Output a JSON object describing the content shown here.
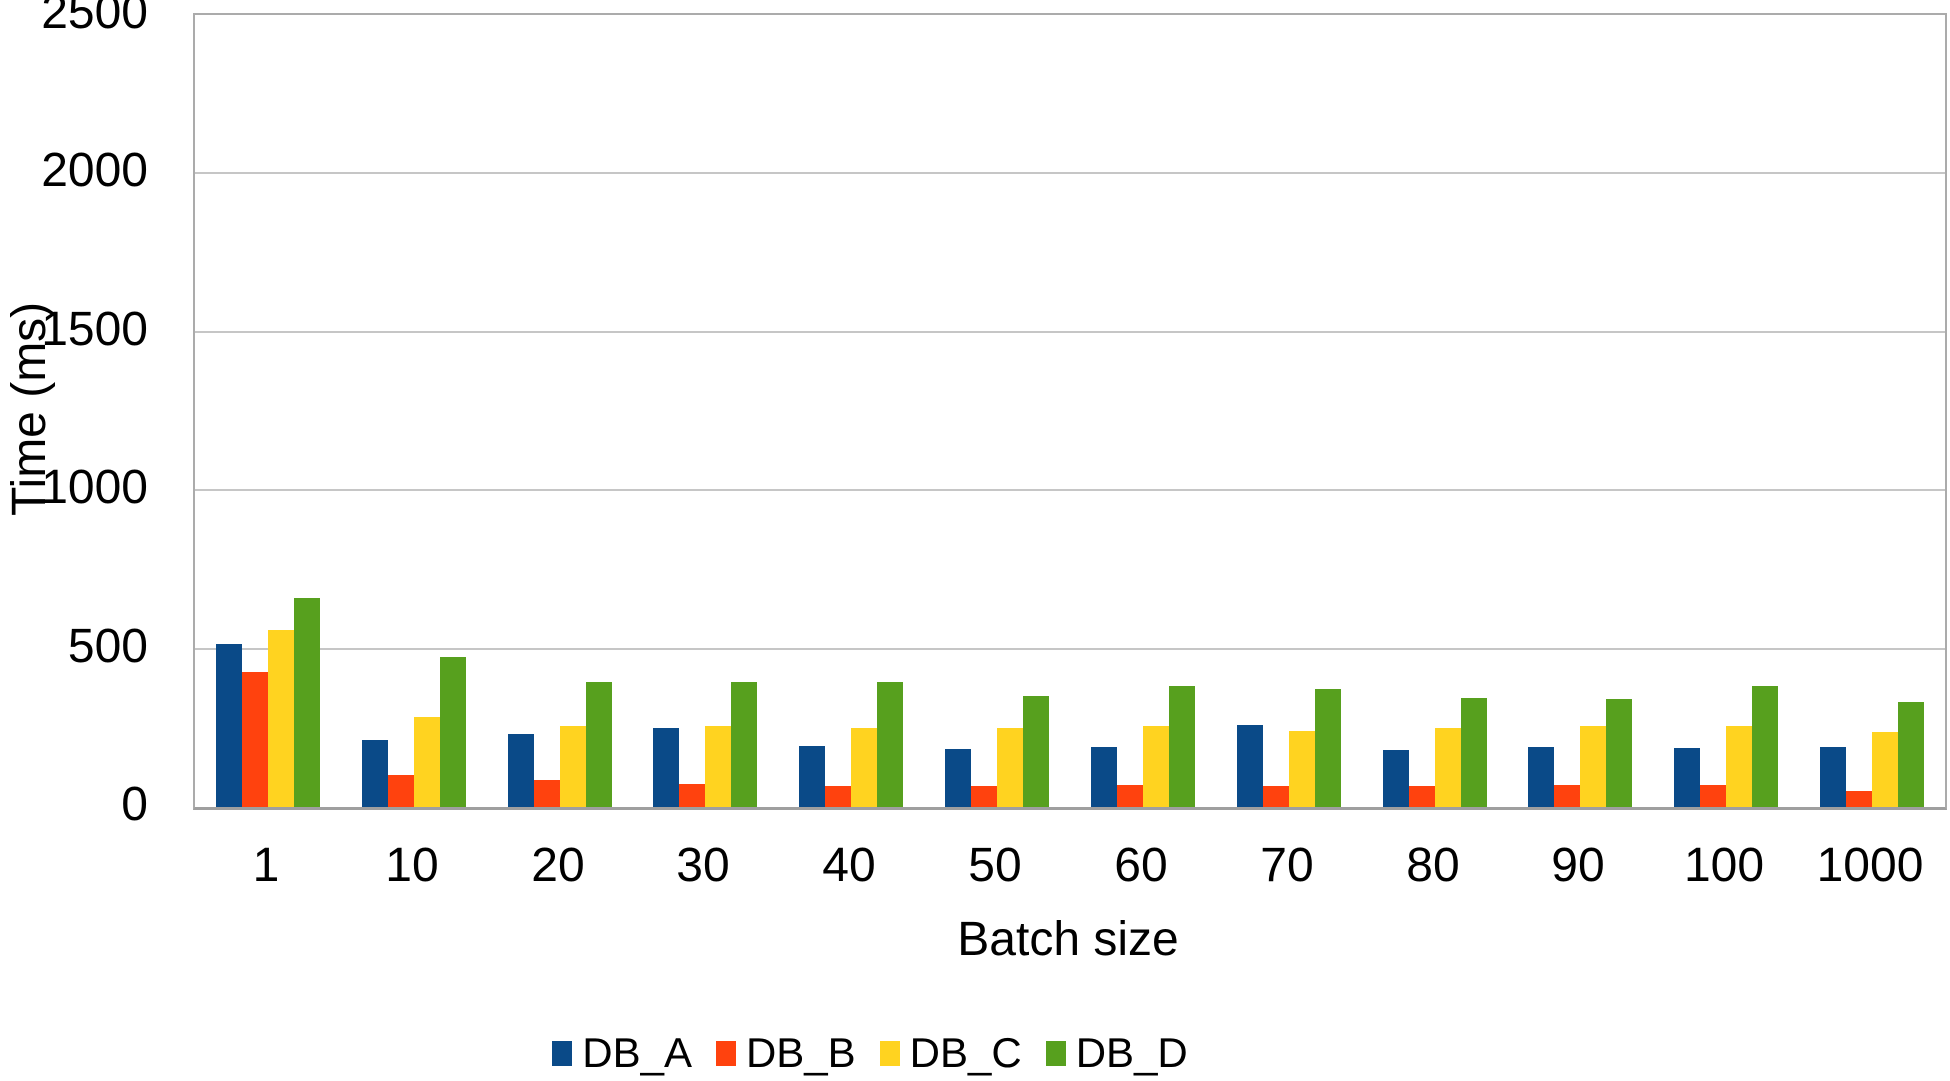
{
  "chart_data": {
    "type": "bar",
    "title": "",
    "xlabel": "Batch size",
    "ylabel": "Time (ms)",
    "categories": [
      "1",
      "10",
      "20",
      "30",
      "40",
      "50",
      "60",
      "70",
      "80",
      "90",
      "100",
      "1000"
    ],
    "series": [
      {
        "name": "DB_A",
        "color": "#0a4a88",
        "values": [
          513,
          211,
          230,
          248,
          192,
          182,
          189,
          258,
          179,
          189,
          186,
          189
        ]
      },
      {
        "name": "DB_B",
        "color": "#ff420e",
        "values": [
          427,
          101,
          85,
          72,
          66,
          65,
          68,
          65,
          65,
          68,
          68,
          50
        ]
      },
      {
        "name": "DB_C",
        "color": "#ffd320",
        "values": [
          560,
          283,
          255,
          255,
          248,
          248,
          255,
          239,
          248,
          255,
          255,
          236
        ]
      },
      {
        "name": "DB_D",
        "color": "#57a01e",
        "values": [
          659,
          475,
          396,
          396,
          395,
          351,
          381,
          371,
          343,
          340,
          381,
          330
        ]
      }
    ],
    "ylim": [
      0,
      2500
    ],
    "y_ticks": [
      2500,
      2000,
      1500,
      1000,
      500,
      0
    ],
    "grid": "horizontal",
    "legend_position": "bottom",
    "colors": {
      "gridline": "#c6c6c6",
      "plot_border": "#ababab",
      "text": "#000000",
      "background": "#ffffff"
    }
  }
}
